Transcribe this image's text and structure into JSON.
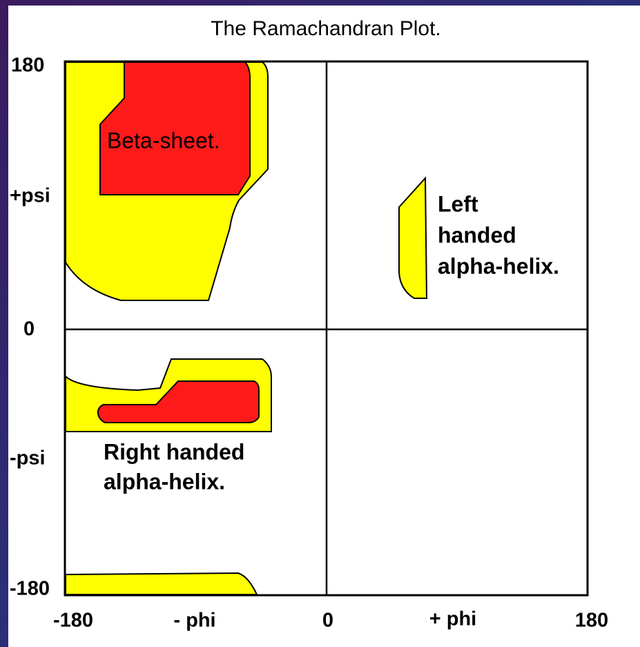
{
  "title": "The Ramachandran Plot.",
  "y_axis_labels": [
    "180",
    "+psi",
    "0",
    "-psi",
    "-180"
  ],
  "x_axis_labels": [
    "-180",
    "- phi",
    "0",
    "+ phi",
    "180"
  ],
  "regions": [
    {
      "label_lines": [
        "Beta-sheet."
      ]
    },
    {
      "label_lines": [
        "Left",
        "handed",
        "alpha-helix."
      ]
    },
    {
      "label_lines": [
        "Right handed",
        "alpha-helix."
      ]
    }
  ]
}
